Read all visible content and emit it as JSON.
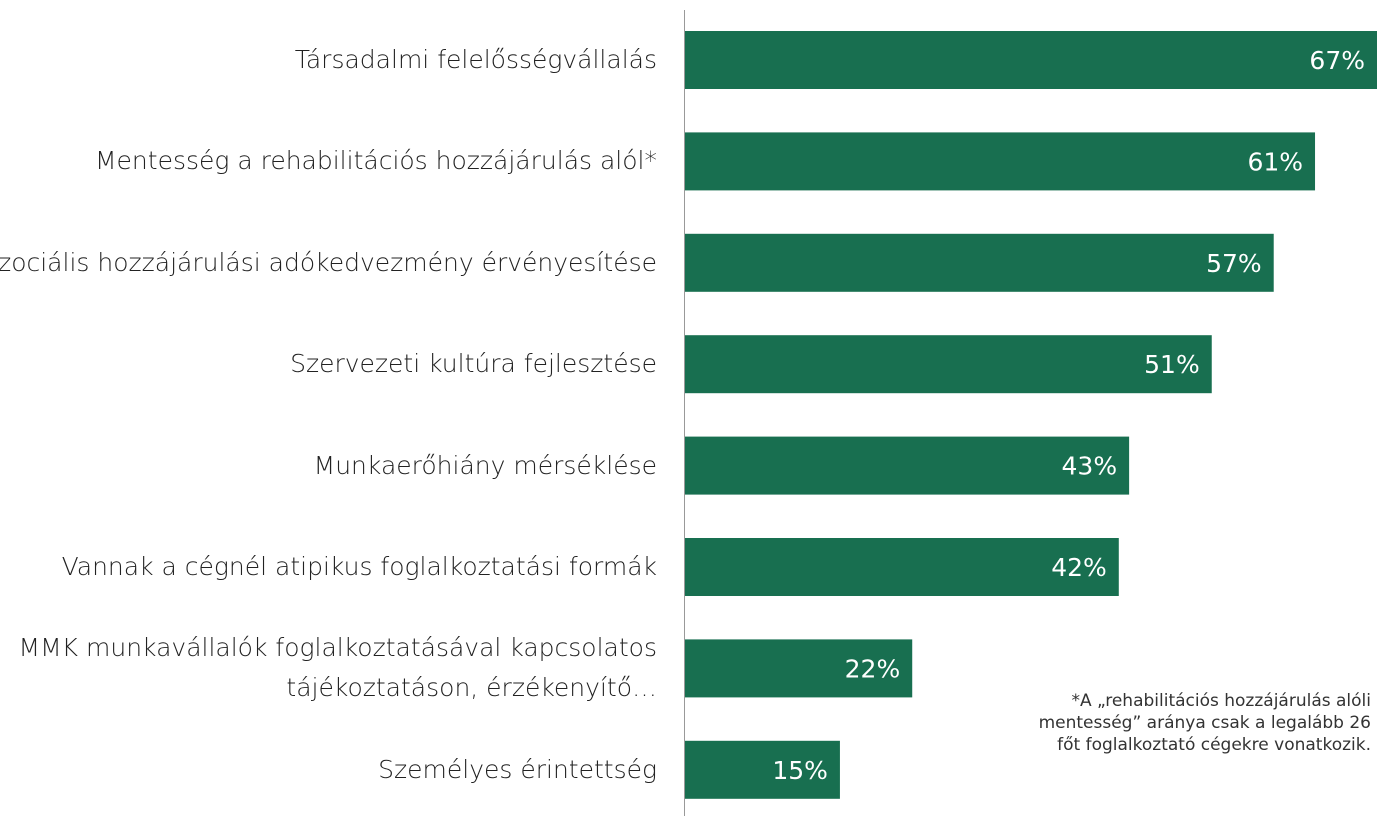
{
  "chart_data": {
    "type": "hbar",
    "categories": [
      "Társadalmi felelősségvállalás",
      "Mentesség a rehabilitációs hozzájárulás alól*",
      "Szociális hozzájárulási adókedvezmény érvényesítése",
      "Szervezeti kultúra fejlesztése",
      "Munkaerőhiány mérséklése",
      "Vannak a cégnél atipikus foglalkoztatási formák",
      "MMK munkavállalók foglalkoztatásával kapcsolatos tájékoztatáson, érzékenyítő…",
      "Személyes érintettség"
    ],
    "values": [
      67,
      61,
      57,
      51,
      43,
      42,
      22,
      15
    ],
    "value_labels": [
      "67%",
      "61%",
      "57%",
      "51%",
      "43%",
      "42%",
      "22%",
      "15%"
    ],
    "color": "#186f50",
    "xlim": [
      0,
      67
    ],
    "annotation": "*A „rehabilitációs hozzájárulás alóli mentesség” aránya csak a legalább 26 főt foglalkoztató cégekre vonatkozik."
  }
}
